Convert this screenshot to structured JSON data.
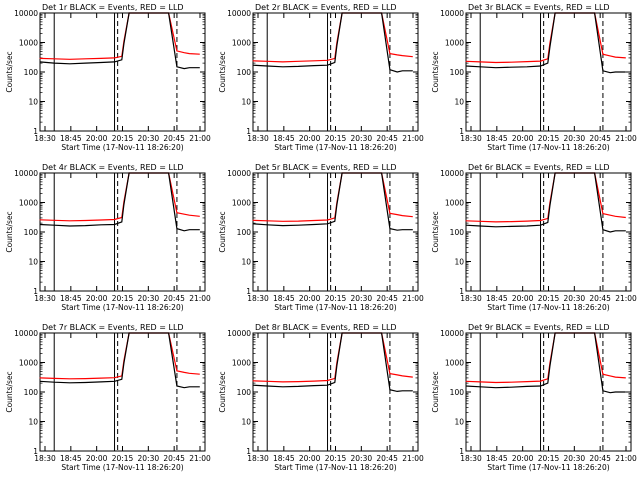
{
  "page_title": "",
  "colors": {
    "events": "#000000",
    "lld": "#ff0000",
    "axes": "#000000",
    "background": "#ffffff"
  },
  "chart_data": [
    {
      "type": "line",
      "title": "Det 1r BLACK = Events, RED = LLD",
      "xlabel": "Start Time (17-Nov-11 18:26:20)",
      "ylabel": "Counts/sec",
      "yscale": "log",
      "ylim": [
        1,
        10000
      ],
      "x_ticks": [
        "18:30",
        "18:45",
        "20:00",
        "20:15",
        "20:30",
        "20:45",
        "21:00"
      ],
      "y_ticks": [
        "1",
        "10",
        "100",
        "1000",
        "10000"
      ],
      "solid_markers": [
        "18:40",
        "19:38"
      ],
      "dashed_markers": [
        "19:41",
        "20:38"
      ],
      "series": [
        {
          "name": "Events",
          "color": "#000000",
          "x": [
            "18:26",
            "18:40",
            "18:55",
            "19:10",
            "19:25",
            "19:38",
            "19:45",
            "19:47",
            "19:52",
            "20:20",
            "20:30",
            "20:38",
            "20:45",
            "20:50",
            "21:00"
          ],
          "values": [
            220,
            200,
            190,
            200,
            210,
            220,
            260,
            900,
            10000,
            10000,
            10000,
            150,
            130,
            140,
            140
          ]
        },
        {
          "name": "LLD",
          "color": "#ff0000",
          "x": [
            "18:26",
            "18:40",
            "18:55",
            "19:10",
            "19:25",
            "19:38",
            "19:45",
            "19:47",
            "19:52",
            "20:20",
            "20:30",
            "20:38",
            "20:45",
            "20:50",
            "21:00"
          ],
          "values": [
            290,
            280,
            270,
            280,
            290,
            300,
            340,
            1100,
            10000,
            10000,
            10000,
            520,
            450,
            420,
            400
          ]
        }
      ]
    },
    {
      "type": "line",
      "title": "Det 2r BLACK = Events, RED = LLD",
      "xlabel": "Start Time (17-Nov-11 18:26:20)",
      "ylabel": "Counts/sec",
      "yscale": "log",
      "ylim": [
        1,
        10000
      ],
      "x_ticks": [
        "18:30",
        "18:45",
        "20:00",
        "20:15",
        "20:30",
        "20:45",
        "21:00"
      ],
      "y_ticks": [
        "1",
        "10",
        "100",
        "1000",
        "10000"
      ],
      "solid_markers": [
        "18:40",
        "19:38"
      ],
      "dashed_markers": [
        "19:41",
        "20:38"
      ],
      "series": [
        {
          "name": "Events",
          "color": "#000000",
          "x": [
            "18:26",
            "18:40",
            "18:55",
            "19:10",
            "19:25",
            "19:38",
            "19:45",
            "19:47",
            "19:52",
            "20:20",
            "20:30",
            "20:38",
            "20:45",
            "20:50",
            "21:00"
          ],
          "values": [
            170,
            160,
            150,
            155,
            165,
            170,
            210,
            800,
            10000,
            10000,
            10000,
            120,
            100,
            110,
            110
          ]
        },
        {
          "name": "LLD",
          "color": "#ff0000",
          "x": [
            "18:26",
            "18:40",
            "18:55",
            "19:10",
            "19:25",
            "19:38",
            "19:45",
            "19:47",
            "19:52",
            "20:20",
            "20:30",
            "20:38",
            "20:45",
            "20:50",
            "21:00"
          ],
          "values": [
            240,
            230,
            220,
            230,
            240,
            250,
            290,
            1000,
            10000,
            10000,
            10000,
            420,
            380,
            360,
            330
          ]
        }
      ]
    },
    {
      "type": "line",
      "title": "Det 3r BLACK = Events, RED = LLD",
      "xlabel": "Start Time (17-Nov-11 18:26:20)",
      "ylabel": "Counts/sec",
      "yscale": "log",
      "ylim": [
        1,
        10000
      ],
      "x_ticks": [
        "18:30",
        "18:45",
        "20:00",
        "20:15",
        "20:30",
        "20:45",
        "21:00"
      ],
      "y_ticks": [
        "1",
        "10",
        "100",
        "1000",
        "10000"
      ],
      "solid_markers": [
        "18:40",
        "19:38"
      ],
      "dashed_markers": [
        "19:41",
        "20:38"
      ],
      "series": [
        {
          "name": "Events",
          "color": "#000000",
          "x": [
            "18:26",
            "18:40",
            "18:55",
            "19:10",
            "19:25",
            "19:38",
            "19:45",
            "19:47",
            "19:52",
            "20:20",
            "20:30",
            "20:38",
            "20:45",
            "20:50",
            "21:00"
          ],
          "values": [
            160,
            150,
            140,
            145,
            150,
            160,
            200,
            700,
            10000,
            10000,
            10000,
            110,
            95,
            100,
            100
          ]
        },
        {
          "name": "LLD",
          "color": "#ff0000",
          "x": [
            "18:26",
            "18:40",
            "18:55",
            "19:10",
            "19:25",
            "19:38",
            "19:45",
            "19:47",
            "19:52",
            "20:20",
            "20:30",
            "20:38",
            "20:45",
            "20:50",
            "21:00"
          ],
          "values": [
            230,
            220,
            210,
            215,
            225,
            235,
            280,
            950,
            10000,
            10000,
            10000,
            400,
            350,
            320,
            300
          ]
        }
      ]
    },
    {
      "type": "line",
      "title": "Det 4r BLACK = Events, RED = LLD",
      "xlabel": "Start Time (17-Nov-11 18:26:20)",
      "ylabel": "Counts/sec",
      "yscale": "log",
      "ylim": [
        1,
        10000
      ],
      "x_ticks": [
        "18:30",
        "18:45",
        "20:00",
        "20:15",
        "20:30",
        "20:45",
        "21:00"
      ],
      "y_ticks": [
        "1",
        "10",
        "100",
        "1000",
        "10000"
      ],
      "solid_markers": [
        "18:40",
        "19:38"
      ],
      "dashed_markers": [
        "19:41",
        "20:38"
      ],
      "series": [
        {
          "name": "Events",
          "color": "#000000",
          "x": [
            "18:26",
            "18:40",
            "18:55",
            "19:10",
            "19:25",
            "19:38",
            "19:45",
            "19:47",
            "19:52",
            "20:20",
            "20:30",
            "20:38",
            "20:45",
            "20:50",
            "21:00"
          ],
          "values": [
            180,
            170,
            160,
            165,
            175,
            180,
            220,
            850,
            10000,
            10000,
            10000,
            130,
            110,
            120,
            120
          ]
        },
        {
          "name": "LLD",
          "color": "#ff0000",
          "x": [
            "18:26",
            "18:40",
            "18:55",
            "19:10",
            "19:25",
            "19:38",
            "19:45",
            "19:47",
            "19:52",
            "20:20",
            "20:30",
            "20:38",
            "20:45",
            "20:50",
            "21:00"
          ],
          "values": [
            260,
            250,
            240,
            245,
            255,
            265,
            310,
            1050,
            10000,
            10000,
            10000,
            450,
            400,
            370,
            340
          ]
        }
      ]
    },
    {
      "type": "line",
      "title": "Det 5r BLACK = Events, RED = LLD",
      "xlabel": "Start Time (17-Nov-11 18:26:20)",
      "ylabel": "Counts/sec",
      "yscale": "log",
      "ylim": [
        1,
        10000
      ],
      "x_ticks": [
        "18:30",
        "18:45",
        "20:00",
        "20:15",
        "20:30",
        "20:45",
        "21:00"
      ],
      "y_ticks": [
        "1",
        "10",
        "100",
        "1000",
        "10000"
      ],
      "solid_markers": [
        "18:40",
        "19:38"
      ],
      "dashed_markers": [
        "19:41",
        "20:38"
      ],
      "series": [
        {
          "name": "Events",
          "color": "#000000",
          "x": [
            "18:26",
            "18:40",
            "18:55",
            "19:10",
            "19:25",
            "19:38",
            "19:45",
            "19:47",
            "19:52",
            "20:20",
            "20:30",
            "20:38",
            "20:45",
            "20:50",
            "21:00"
          ],
          "values": [
            190,
            175,
            165,
            170,
            180,
            190,
            230,
            850,
            10000,
            10000,
            10000,
            130,
            115,
            120,
            120
          ]
        },
        {
          "name": "LLD",
          "color": "#ff0000",
          "x": [
            "18:26",
            "18:40",
            "18:55",
            "19:10",
            "19:25",
            "19:38",
            "19:45",
            "19:47",
            "19:52",
            "20:20",
            "20:30",
            "20:38",
            "20:45",
            "20:50",
            "21:00"
          ],
          "values": [
            250,
            240,
            230,
            235,
            245,
            255,
            300,
            1000,
            10000,
            10000,
            10000,
            430,
            390,
            360,
            330
          ]
        }
      ]
    },
    {
      "type": "line",
      "title": "Det 6r BLACK = Events, RED = LLD",
      "xlabel": "Start Time (17-Nov-11 18:26:20)",
      "ylabel": "Counts/sec",
      "yscale": "log",
      "ylim": [
        1,
        10000
      ],
      "x_ticks": [
        "18:30",
        "18:45",
        "20:00",
        "20:15",
        "20:30",
        "20:45",
        "21:00"
      ],
      "y_ticks": [
        "1",
        "10",
        "100",
        "1000",
        "10000"
      ],
      "solid_markers": [
        "18:40",
        "19:38"
      ],
      "dashed_markers": [
        "19:41",
        "20:38"
      ],
      "series": [
        {
          "name": "Events",
          "color": "#000000",
          "x": [
            "18:26",
            "18:40",
            "18:55",
            "19:10",
            "19:25",
            "19:38",
            "19:45",
            "19:47",
            "19:52",
            "20:20",
            "20:30",
            "20:38",
            "20:45",
            "20:50",
            "21:00"
          ],
          "values": [
            170,
            160,
            150,
            155,
            160,
            170,
            210,
            780,
            10000,
            10000,
            10000,
            120,
            100,
            110,
            110
          ]
        },
        {
          "name": "LLD",
          "color": "#ff0000",
          "x": [
            "18:26",
            "18:40",
            "18:55",
            "19:10",
            "19:25",
            "19:38",
            "19:45",
            "19:47",
            "19:52",
            "20:20",
            "20:30",
            "20:38",
            "20:45",
            "20:50",
            "21:00"
          ],
          "values": [
            240,
            230,
            220,
            225,
            235,
            245,
            290,
            980,
            10000,
            10000,
            10000,
            420,
            370,
            340,
            310
          ]
        }
      ]
    },
    {
      "type": "line",
      "title": "Det 7r BLACK = Events, RED = LLD",
      "xlabel": "Start Time (17-Nov-11 18:26:20)",
      "ylabel": "Counts/sec",
      "yscale": "log",
      "ylim": [
        1,
        10000
      ],
      "x_ticks": [
        "18:30",
        "18:45",
        "20:00",
        "20:15",
        "20:30",
        "20:45",
        "21:00"
      ],
      "y_ticks": [
        "1",
        "10",
        "100",
        "1000",
        "10000"
      ],
      "solid_markers": [
        "18:40",
        "19:38"
      ],
      "dashed_markers": [
        "19:41",
        "20:38"
      ],
      "series": [
        {
          "name": "Events",
          "color": "#000000",
          "x": [
            "18:26",
            "18:40",
            "18:55",
            "19:10",
            "19:25",
            "19:38",
            "19:45",
            "19:47",
            "19:52",
            "20:20",
            "20:30",
            "20:38",
            "20:45",
            "20:50",
            "21:00"
          ],
          "values": [
            230,
            215,
            205,
            210,
            220,
            230,
            270,
            950,
            10000,
            10000,
            10000,
            160,
            140,
            150,
            150
          ]
        },
        {
          "name": "LLD",
          "color": "#ff0000",
          "x": [
            "18:26",
            "18:40",
            "18:55",
            "19:10",
            "19:25",
            "19:38",
            "19:45",
            "19:47",
            "19:52",
            "20:20",
            "20:30",
            "20:38",
            "20:45",
            "20:50",
            "21:00"
          ],
          "values": [
            300,
            290,
            280,
            285,
            295,
            305,
            350,
            1150,
            10000,
            10000,
            10000,
            520,
            460,
            430,
            400
          ]
        }
      ]
    },
    {
      "type": "line",
      "title": "Det 8r BLACK = Events, RED = LLD",
      "xlabel": "Start Time (17-Nov-11 18:26:20)",
      "ylabel": "Counts/sec",
      "yscale": "log",
      "ylim": [
        1,
        10000
      ],
      "x_ticks": [
        "18:30",
        "18:45",
        "20:00",
        "20:15",
        "20:30",
        "20:45",
        "21:00"
      ],
      "y_ticks": [
        "1",
        "10",
        "100",
        "1000",
        "10000"
      ],
      "solid_markers": [
        "18:40",
        "19:38"
      ],
      "dashed_markers": [
        "19:41",
        "20:38"
      ],
      "series": [
        {
          "name": "Events",
          "color": "#000000",
          "x": [
            "18:26",
            "18:40",
            "18:55",
            "19:10",
            "19:25",
            "19:38",
            "19:45",
            "19:47",
            "19:52",
            "20:20",
            "20:30",
            "20:38",
            "20:45",
            "20:50",
            "21:00"
          ],
          "values": [
            170,
            160,
            150,
            155,
            165,
            170,
            210,
            800,
            10000,
            10000,
            10000,
            120,
            105,
            110,
            110
          ]
        },
        {
          "name": "LLD",
          "color": "#ff0000",
          "x": [
            "18:26",
            "18:40",
            "18:55",
            "19:10",
            "19:25",
            "19:38",
            "19:45",
            "19:47",
            "19:52",
            "20:20",
            "20:30",
            "20:38",
            "20:45",
            "20:50",
            "21:00"
          ],
          "values": [
            240,
            230,
            220,
            225,
            235,
            245,
            290,
            1000,
            10000,
            10000,
            10000,
            420,
            380,
            350,
            320
          ]
        }
      ]
    },
    {
      "type": "line",
      "title": "Det 9r BLACK = Events, RED = LLD",
      "xlabel": "Start Time (17-Nov-11 18:26:20)",
      "ylabel": "Counts/sec",
      "yscale": "log",
      "ylim": [
        1,
        10000
      ],
      "x_ticks": [
        "18:30",
        "18:45",
        "20:00",
        "20:15",
        "20:30",
        "20:45",
        "21:00"
      ],
      "y_ticks": [
        "1",
        "10",
        "100",
        "1000",
        "10000"
      ],
      "solid_markers": [
        "18:40",
        "19:38"
      ],
      "dashed_markers": [
        "19:41",
        "20:38"
      ],
      "series": [
        {
          "name": "Events",
          "color": "#000000",
          "x": [
            "18:26",
            "18:40",
            "18:55",
            "19:10",
            "19:25",
            "19:38",
            "19:45",
            "19:47",
            "19:52",
            "20:20",
            "20:30",
            "20:38",
            "20:45",
            "20:50",
            "21:00"
          ],
          "values": [
            160,
            150,
            140,
            145,
            155,
            160,
            200,
            750,
            10000,
            10000,
            10000,
            110,
            95,
            100,
            100
          ]
        },
        {
          "name": "LLD",
          "color": "#ff0000",
          "x": [
            "18:26",
            "18:40",
            "18:55",
            "19:10",
            "19:25",
            "19:38",
            "19:45",
            "19:47",
            "19:52",
            "20:20",
            "20:30",
            "20:38",
            "20:45",
            "20:50",
            "21:00"
          ],
          "values": [
            230,
            220,
            210,
            215,
            225,
            235,
            280,
            950,
            10000,
            10000,
            10000,
            400,
            350,
            320,
            300
          ]
        }
      ]
    }
  ]
}
